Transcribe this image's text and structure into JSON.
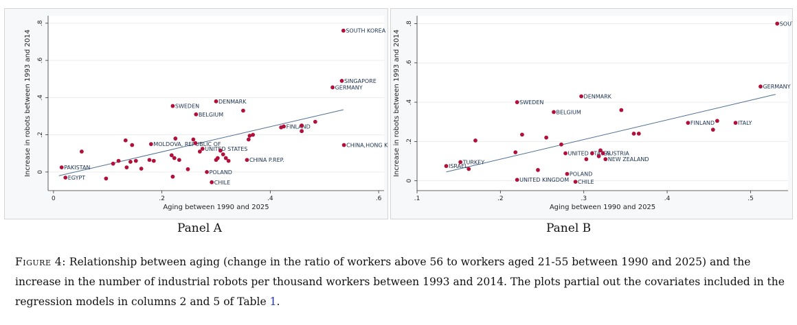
{
  "panels": [
    {
      "title": "Panel A"
    },
    {
      "title": "Panel B"
    }
  ],
  "caption": {
    "label": "Figure 4:",
    "text": "Relationship between aging (change in the ratio of workers above 56 to workers aged 21-55 between 1990 and 2025) and the increase in the number of industrial robots per thousand workers between 1993 and 2014. The plots partial out the covariates included in the regression models in columns 2 and 5 of Table",
    "ref": "1",
    "end": "."
  },
  "colors": {
    "point": "#b0103a",
    "fit_line": "#4e6f93",
    "label": "#1a3050"
  },
  "chart_data": [
    {
      "type": "scatter",
      "title": "",
      "xlabel": "Aging between 1990 and 2025",
      "ylabel": "Increase in robots between 1993 and 2014",
      "xlim": [
        -0.01,
        0.61
      ],
      "ylim": [
        -0.1,
        0.84
      ],
      "xticks": [
        0,
        0.2,
        0.4,
        0.6
      ],
      "xtick_labels": [
        "0",
        ".2",
        ".4",
        ".6"
      ],
      "yticks": [
        0,
        0.2,
        0.4,
        0.6,
        0.8
      ],
      "ytick_labels": [
        "0",
        ".2",
        ".4",
        ".6",
        ".8"
      ],
      "grid": true,
      "fit_line": [
        [
          0.01,
          -0.02
        ],
        [
          0.535,
          0.335
        ]
      ],
      "points": [
        {
          "x": 0.535,
          "y": 0.76,
          "label": "SOUTH KOREA"
        },
        {
          "x": 0.532,
          "y": 0.49,
          "label": "SINGAPORE"
        },
        {
          "x": 0.515,
          "y": 0.455,
          "label": "GERMANY"
        },
        {
          "x": 0.3,
          "y": 0.38,
          "label": "DENMARK"
        },
        {
          "x": 0.22,
          "y": 0.355,
          "label": "SWEDEN"
        },
        {
          "x": 0.263,
          "y": 0.31,
          "label": "BELGIUM"
        },
        {
          "x": 0.425,
          "y": 0.245,
          "label": "FINLAND"
        },
        {
          "x": 0.18,
          "y": 0.15,
          "label": "MOLDOVA, REPUBLIC OF"
        },
        {
          "x": 0.275,
          "y": 0.125,
          "label": "UNITED STATES"
        },
        {
          "x": 0.536,
          "y": 0.145,
          "label": "CHINA,HONG KONG"
        },
        {
          "x": 0.357,
          "y": 0.065,
          "label": "CHINA P.REP."
        },
        {
          "x": 0.015,
          "y": 0.025,
          "label": "PAKISTAN"
        },
        {
          "x": 0.022,
          "y": -0.03,
          "label": "EGYPT"
        },
        {
          "x": 0.283,
          "y": 0.0,
          "label": "POLAND"
        },
        {
          "x": 0.292,
          "y": -0.055,
          "label": "CHILE"
        },
        {
          "x": 0.052,
          "y": 0.11,
          "label": ""
        },
        {
          "x": 0.097,
          "y": -0.035,
          "label": ""
        },
        {
          "x": 0.11,
          "y": 0.045,
          "label": ""
        },
        {
          "x": 0.12,
          "y": 0.06,
          "label": ""
        },
        {
          "x": 0.133,
          "y": 0.17,
          "label": ""
        },
        {
          "x": 0.135,
          "y": 0.025,
          "label": ""
        },
        {
          "x": 0.142,
          "y": 0.055,
          "label": ""
        },
        {
          "x": 0.145,
          "y": 0.145,
          "label": ""
        },
        {
          "x": 0.152,
          "y": 0.06,
          "label": ""
        },
        {
          "x": 0.162,
          "y": 0.018,
          "label": ""
        },
        {
          "x": 0.177,
          "y": 0.065,
          "label": ""
        },
        {
          "x": 0.185,
          "y": 0.06,
          "label": ""
        },
        {
          "x": 0.218,
          "y": 0.09,
          "label": ""
        },
        {
          "x": 0.22,
          "y": -0.025,
          "label": ""
        },
        {
          "x": 0.223,
          "y": 0.075,
          "label": ""
        },
        {
          "x": 0.225,
          "y": 0.18,
          "label": ""
        },
        {
          "x": 0.232,
          "y": 0.065,
          "label": ""
        },
        {
          "x": 0.248,
          "y": 0.015,
          "label": ""
        },
        {
          "x": 0.258,
          "y": 0.175,
          "label": ""
        },
        {
          "x": 0.262,
          "y": 0.155,
          "label": ""
        },
        {
          "x": 0.27,
          "y": 0.11,
          "label": ""
        },
        {
          "x": 0.3,
          "y": 0.065,
          "label": ""
        },
        {
          "x": 0.303,
          "y": 0.075,
          "label": ""
        },
        {
          "x": 0.308,
          "y": 0.115,
          "label": ""
        },
        {
          "x": 0.313,
          "y": 0.095,
          "label": ""
        },
        {
          "x": 0.318,
          "y": 0.075,
          "label": ""
        },
        {
          "x": 0.323,
          "y": 0.06,
          "label": ""
        },
        {
          "x": 0.35,
          "y": 0.33,
          "label": ""
        },
        {
          "x": 0.36,
          "y": 0.175,
          "label": ""
        },
        {
          "x": 0.362,
          "y": 0.195,
          "label": ""
        },
        {
          "x": 0.368,
          "y": 0.2,
          "label": ""
        },
        {
          "x": 0.42,
          "y": 0.24,
          "label": ""
        },
        {
          "x": 0.458,
          "y": 0.22,
          "label": ""
        },
        {
          "x": 0.458,
          "y": 0.25,
          "label": ""
        },
        {
          "x": 0.483,
          "y": 0.27,
          "label": ""
        }
      ]
    },
    {
      "type": "scatter",
      "title": "",
      "xlabel": "Aging between 1990 and 2025",
      "ylabel": "Increase in robots between 1993 and 2014",
      "xlim": [
        0.1,
        0.545
      ],
      "ylim": [
        -0.05,
        0.84
      ],
      "xticks": [
        0.1,
        0.2,
        0.3,
        0.4,
        0.5
      ],
      "xtick_labels": [
        ".1",
        ".2",
        ".3",
        ".4",
        ".5"
      ],
      "yticks": [
        0,
        0.2,
        0.4,
        0.6,
        0.8
      ],
      "ytick_labels": [
        "0",
        ".2",
        ".4",
        ".6",
        ".8"
      ],
      "grid": true,
      "fit_line": [
        [
          0.135,
          0.045
        ],
        [
          0.53,
          0.44
        ]
      ],
      "points": [
        {
          "x": 0.532,
          "y": 0.8,
          "label": "SOUTH KOREA"
        },
        {
          "x": 0.512,
          "y": 0.48,
          "label": "GERMANY"
        },
        {
          "x": 0.297,
          "y": 0.43,
          "label": "DENMARK"
        },
        {
          "x": 0.22,
          "y": 0.4,
          "label": "SWEDEN"
        },
        {
          "x": 0.264,
          "y": 0.35,
          "label": "BELGIUM"
        },
        {
          "x": 0.425,
          "y": 0.295,
          "label": "FINLAND"
        },
        {
          "x": 0.482,
          "y": 0.295,
          "label": "ITALY"
        },
        {
          "x": 0.278,
          "y": 0.14,
          "label": "UNITED STATES"
        },
        {
          "x": 0.323,
          "y": 0.14,
          "label": "AUSTRIA"
        },
        {
          "x": 0.326,
          "y": 0.11,
          "label": "NEW ZEALAND"
        },
        {
          "x": 0.152,
          "y": 0.095,
          "label": "TURKEY"
        },
        {
          "x": 0.135,
          "y": 0.075,
          "label": "ISRAEL"
        },
        {
          "x": 0.22,
          "y": 0.005,
          "label": "UNITED KINGDOM"
        },
        {
          "x": 0.28,
          "y": 0.035,
          "label": "POLAND"
        },
        {
          "x": 0.29,
          "y": -0.005,
          "label": "CHILE"
        },
        {
          "x": 0.162,
          "y": 0.06,
          "label": ""
        },
        {
          "x": 0.17,
          "y": 0.205,
          "label": ""
        },
        {
          "x": 0.218,
          "y": 0.145,
          "label": ""
        },
        {
          "x": 0.226,
          "y": 0.235,
          "label": ""
        },
        {
          "x": 0.245,
          "y": 0.055,
          "label": ""
        },
        {
          "x": 0.255,
          "y": 0.22,
          "label": ""
        },
        {
          "x": 0.273,
          "y": 0.185,
          "label": ""
        },
        {
          "x": 0.303,
          "y": 0.11,
          "label": ""
        },
        {
          "x": 0.31,
          "y": 0.14,
          "label": ""
        },
        {
          "x": 0.318,
          "y": 0.125,
          "label": ""
        },
        {
          "x": 0.32,
          "y": 0.155,
          "label": ""
        },
        {
          "x": 0.345,
          "y": 0.36,
          "label": ""
        },
        {
          "x": 0.36,
          "y": 0.24,
          "label": ""
        },
        {
          "x": 0.366,
          "y": 0.24,
          "label": ""
        },
        {
          "x": 0.455,
          "y": 0.26,
          "label": ""
        },
        {
          "x": 0.46,
          "y": 0.305,
          "label": ""
        }
      ]
    }
  ]
}
